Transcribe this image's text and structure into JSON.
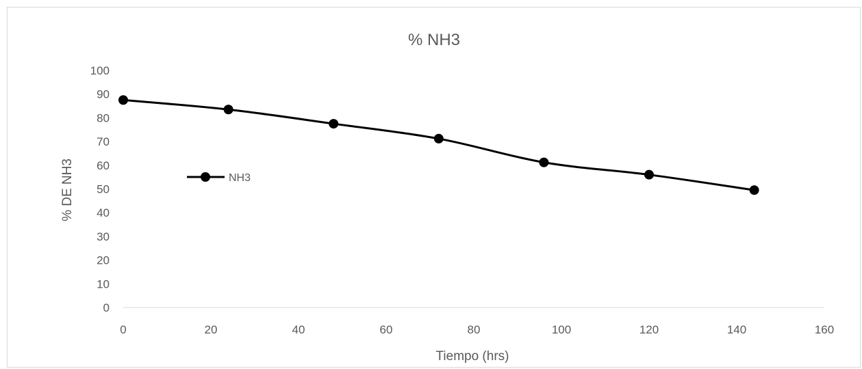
{
  "chart_data": {
    "type": "line",
    "title": "% NH3",
    "xlabel": "Tiempo (hrs)",
    "ylabel": "% DE NH3",
    "xlim": [
      0,
      160
    ],
    "ylim": [
      0,
      100
    ],
    "xticks": [
      0,
      20,
      40,
      60,
      80,
      100,
      120,
      140,
      160
    ],
    "yticks": [
      0,
      10,
      20,
      30,
      40,
      50,
      60,
      70,
      80,
      90,
      100
    ],
    "grid": false,
    "legend_position": "left",
    "series": [
      {
        "name": "NH3",
        "color": "#000000",
        "x": [
          0,
          24,
          48,
          72,
          96,
          120,
          144
        ],
        "y": [
          87.5,
          83.5,
          77.5,
          71.2,
          61.2,
          56.0,
          49.5
        ]
      }
    ]
  }
}
